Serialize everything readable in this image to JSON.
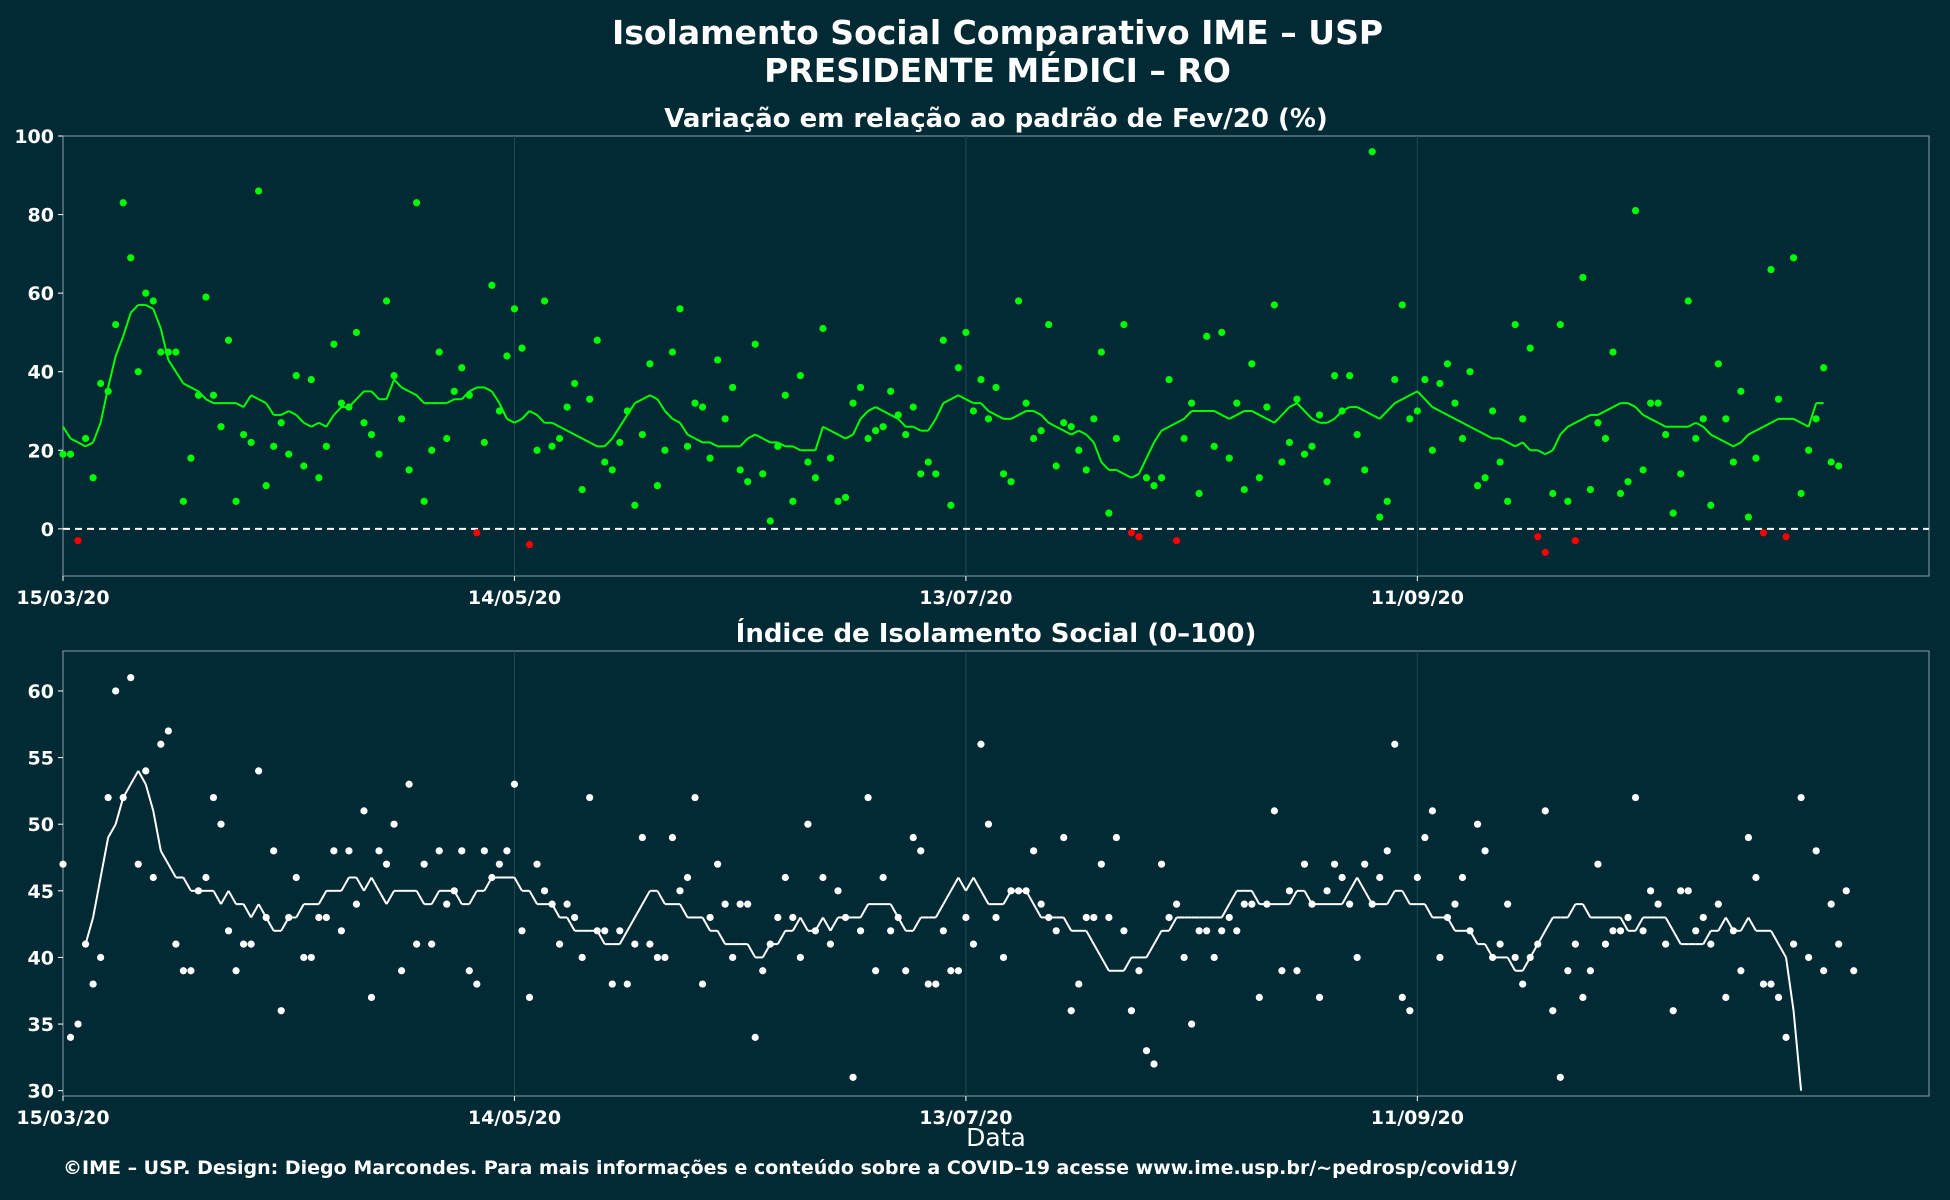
{
  "title": "Isolamento Social Comparativo IME – USP",
  "subtitle": "PRESIDENTE MÉDICI – RO",
  "caption": "©IME – USP. Design: Diego Marcondes. Para mais informações e conteúdo sobre a COVID–19 acesse www.ime.usp.br/~pedrosp/covid19/",
  "colors": {
    "background": "#012a35",
    "positive": "#00ff00",
    "negative": "#ff0000",
    "index": "#ffffff"
  },
  "chart_data": [
    {
      "type": "scatter",
      "title": "Variação em relação ao padrão de Fev/20 (%)",
      "xlabel": "",
      "ylabel": "",
      "x_start": "2020-03-15",
      "x_ticks": [
        "15/03/20",
        "14/05/20",
        "13/07/20",
        "11/09/20"
      ],
      "xlim": [
        "2020-03-15",
        "2020-11-18"
      ],
      "ylim": [
        -12,
        100
      ],
      "y_ticks": [
        0,
        20,
        40,
        60,
        80,
        100
      ],
      "reference_line": 0,
      "series": [
        {
          "values": [
            19,
            19,
            -3,
            23,
            13,
            37,
            35,
            52,
            83,
            69,
            40,
            60,
            58,
            45,
            45,
            45,
            7,
            18,
            34,
            59,
            34,
            26,
            48,
            7,
            24,
            22,
            86,
            11,
            21,
            27,
            19,
            39,
            16,
            38,
            13,
            21,
            47,
            32,
            31,
            50,
            27,
            24,
            19,
            58,
            39,
            28,
            15,
            83,
            7,
            20,
            45,
            23,
            35,
            41,
            34,
            -1,
            22,
            62,
            30,
            44,
            56,
            46,
            -4,
            20,
            58,
            21,
            23,
            31,
            37,
            10,
            33,
            48,
            17,
            15,
            22,
            30,
            6,
            24,
            42,
            11,
            20,
            45,
            56,
            21,
            32,
            31,
            18,
            43,
            28,
            36,
            15,
            12,
            47,
            14,
            2,
            21,
            34,
            7,
            39,
            17,
            13,
            51,
            18,
            7,
            8,
            32,
            36,
            23,
            25,
            26,
            35,
            29,
            24,
            31,
            14,
            17,
            14,
            48,
            6,
            41,
            50,
            30,
            38,
            28,
            36,
            14,
            12,
            58,
            32,
            23,
            25,
            52,
            16,
            27,
            26,
            20,
            15,
            28,
            45,
            4,
            23,
            52,
            -1,
            -2,
            13,
            11,
            13,
            38,
            -3,
            23,
            32,
            9,
            49,
            21,
            50,
            18,
            32,
            10,
            42,
            13,
            31,
            57,
            17,
            22,
            33,
            19,
            21,
            29,
            12,
            39,
            30,
            39,
            24,
            15,
            96,
            3,
            7,
            38,
            57,
            28,
            30,
            38,
            20,
            37,
            42,
            32,
            23,
            40,
            11,
            13,
            30,
            17,
            7,
            52,
            28,
            46,
            -2,
            -6,
            9,
            52,
            7,
            -3,
            64,
            10,
            27,
            23,
            45,
            9,
            12,
            81,
            15,
            32,
            32,
            24,
            4,
            14,
            58,
            23,
            28,
            6,
            42,
            28,
            17,
            35,
            3,
            18,
            -1,
            66,
            33,
            -2,
            69,
            9,
            20,
            28,
            41,
            17,
            16
          ]
        }
      ],
      "rolling_mean": [
        26,
        23,
        22,
        21,
        22,
        27,
        36,
        44,
        49,
        55,
        57,
        57,
        56,
        51,
        43,
        40,
        37,
        36,
        35,
        33,
        32,
        32,
        32,
        32,
        31,
        34,
        33,
        32,
        29,
        29,
        30,
        29,
        27,
        26,
        27,
        26,
        29,
        31,
        31,
        33,
        35,
        35,
        33,
        33,
        38,
        36,
        35,
        34,
        32,
        32,
        32,
        32,
        33,
        33,
        35,
        36,
        36,
        35,
        32,
        28,
        27,
        28,
        30,
        29,
        27,
        27,
        26,
        25,
        24,
        23,
        22,
        21,
        21,
        23,
        26,
        29,
        32,
        33,
        34,
        33,
        30,
        28,
        27,
        24,
        23,
        22,
        22,
        21,
        21,
        21,
        21,
        23,
        24,
        23,
        22,
        22,
        21,
        21,
        20,
        20,
        20,
        26,
        25,
        24,
        23,
        24,
        28,
        30,
        31,
        30,
        29,
        28,
        26,
        26,
        25,
        25,
        28,
        32,
        33,
        34,
        33,
        32,
        32,
        30,
        29,
        28,
        28,
        29,
        30,
        30,
        29,
        27,
        26,
        25,
        24,
        25,
        24,
        22,
        17,
        15,
        15,
        14,
        13,
        14,
        18,
        22,
        25,
        26,
        27,
        28,
        30,
        30,
        30,
        30,
        29,
        28,
        29,
        30,
        30,
        29,
        28,
        27,
        29,
        31,
        32,
        30,
        28,
        27,
        27,
        28,
        30,
        31,
        31,
        30,
        29,
        28,
        30,
        32,
        33,
        34,
        35,
        33,
        31,
        30,
        29,
        28,
        27,
        26,
        25,
        24,
        23,
        23,
        22,
        21,
        22,
        20,
        20,
        19,
        20,
        24,
        26,
        27,
        28,
        29,
        29,
        30,
        31,
        32,
        32,
        31,
        29,
        28,
        27,
        26,
        26,
        26,
        26,
        27,
        26,
        24,
        23,
        22,
        21,
        22,
        24,
        25,
        26,
        27,
        28,
        28,
        28,
        27,
        26,
        32,
        32
      ]
    },
    {
      "type": "scatter",
      "title": "Índice de Isolamento Social (0–100)",
      "xlabel": "Data",
      "ylabel": "",
      "x_start": "2020-03-15",
      "x_ticks": [
        "15/03/20",
        "14/05/20",
        "13/07/20",
        "11/09/20"
      ],
      "xlim": [
        "2020-03-15",
        "2020-11-18"
      ],
      "ylim": [
        29.6,
        63
      ],
      "y_ticks": [
        30,
        35,
        40,
        45,
        50,
        55,
        60
      ],
      "series": [
        {
          "values": [
            47,
            34,
            35,
            41,
            38,
            40,
            52,
            60,
            52,
            61,
            47,
            54,
            46,
            56,
            57,
            41,
            39,
            39,
            45,
            46,
            52,
            50,
            42,
            39,
            41,
            41,
            54,
            43,
            48,
            36,
            43,
            46,
            40,
            40,
            43,
            43,
            48,
            42,
            48,
            44,
            51,
            37,
            48,
            47,
            50,
            39,
            53,
            41,
            47,
            41,
            48,
            44,
            45,
            48,
            39,
            38,
            48,
            46,
            47,
            48,
            53,
            42,
            37,
            47,
            45,
            44,
            41,
            44,
            43,
            40,
            52,
            42,
            42,
            38,
            42,
            38,
            41,
            49,
            41,
            40,
            40,
            49,
            45,
            46,
            52,
            38,
            43,
            47,
            44,
            40,
            44,
            44,
            34,
            39,
            41,
            43,
            46,
            43,
            40,
            50,
            42,
            46,
            41,
            45,
            43,
            31,
            42,
            52,
            39,
            46,
            42,
            43,
            39,
            49,
            48,
            38,
            38,
            42,
            39,
            39,
            43,
            41,
            56,
            50,
            43,
            40,
            45,
            45,
            45,
            48,
            44,
            43,
            42,
            49,
            36,
            38,
            43,
            43,
            47,
            43,
            49,
            42,
            36,
            39,
            33,
            32,
            47,
            43,
            44,
            40,
            35,
            42,
            42,
            40,
            42,
            43,
            42,
            44,
            44,
            37,
            44,
            51,
            39,
            45,
            39,
            47,
            44,
            37,
            45,
            47,
            46,
            44,
            40,
            47,
            44,
            46,
            48,
            56,
            37,
            36,
            46,
            49,
            51,
            40,
            43,
            44,
            46,
            42,
            50,
            48,
            40,
            41,
            44,
            40,
            38,
            40,
            41,
            51,
            36,
            31,
            39,
            41,
            37,
            39,
            47,
            41,
            42,
            42,
            43,
            52,
            42,
            45,
            44,
            41,
            36,
            45,
            45,
            42,
            43,
            41,
            44,
            37,
            42,
            39,
            49,
            46,
            38,
            38,
            37,
            34,
            41,
            52,
            40,
            48,
            39,
            44,
            41,
            45,
            39
          ]
        }
      ],
      "rolling_mean": [
        null,
        null,
        null,
        41,
        43,
        46,
        49,
        50,
        52,
        53,
        54,
        53,
        51,
        48,
        47,
        46,
        46,
        45,
        45,
        45,
        45,
        44,
        45,
        44,
        44,
        43,
        44,
        43,
        42,
        42,
        43,
        43,
        44,
        44,
        44,
        45,
        45,
        45,
        46,
        46,
        45,
        46,
        45,
        44,
        45,
        45,
        45,
        45,
        44,
        44,
        45,
        45,
        45,
        44,
        44,
        45,
        45,
        46,
        46,
        46,
        46,
        45,
        45,
        44,
        44,
        44,
        43,
        43,
        42,
        42,
        42,
        42,
        41,
        41,
        41,
        42,
        43,
        44,
        45,
        45,
        44,
        44,
        44,
        43,
        43,
        43,
        42,
        42,
        41,
        41,
        41,
        41,
        40,
        40,
        41,
        41,
        42,
        42,
        43,
        42,
        42,
        43,
        42,
        43,
        43,
        43,
        43,
        44,
        44,
        44,
        44,
        43,
        42,
        42,
        43,
        43,
        43,
        44,
        45,
        46,
        45,
        46,
        45,
        44,
        44,
        44,
        45,
        45,
        45,
        44,
        43,
        43,
        43,
        43,
        42,
        42,
        42,
        41,
        40,
        39,
        39,
        39,
        40,
        40,
        40,
        41,
        42,
        42,
        43,
        43,
        43,
        43,
        43,
        43,
        43,
        44,
        45,
        45,
        45,
        44,
        44,
        44,
        44,
        44,
        45,
        45,
        44,
        44,
        44,
        44,
        44,
        45,
        46,
        45,
        44,
        44,
        44,
        45,
        45,
        44,
        44,
        44,
        43,
        43,
        43,
        42,
        42,
        42,
        41,
        41,
        40,
        40,
        40,
        39,
        39,
        40,
        41,
        42,
        43,
        43,
        43,
        44,
        44,
        43,
        43,
        43,
        43,
        43,
        42,
        42,
        43,
        43,
        43,
        43,
        42,
        41,
        41,
        41,
        41,
        42,
        42,
        43,
        42,
        42,
        43,
        42,
        42,
        42,
        41,
        40,
        36,
        30
      ]
    }
  ]
}
